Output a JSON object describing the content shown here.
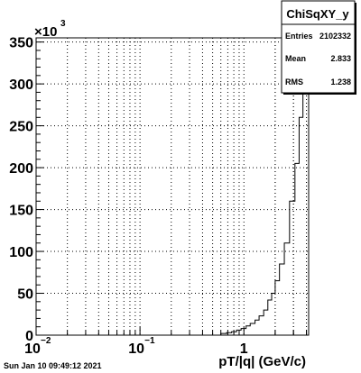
{
  "chart_data": {
    "type": "bar",
    "title": "",
    "xlabel": "pT/|q| (GeV/c)",
    "ylabel": "",
    "x_scale": "log",
    "xlim": [
      0.01,
      4.2
    ],
    "ylim": [
      0,
      355000
    ],
    "y_multiplier_label": "×10",
    "y_multiplier_exponent": "3",
    "x_ticks": [
      {
        "value": 0.01,
        "base": "10",
        "exp": "−2"
      },
      {
        "value": 0.1,
        "base": "10",
        "exp": "−1"
      },
      {
        "value": 1,
        "base": "1",
        "exp": ""
      }
    ],
    "y_ticks": [
      {
        "value": 0,
        "label": "0"
      },
      {
        "value": 50000,
        "label": "50"
      },
      {
        "value": 100000,
        "label": "100"
      },
      {
        "value": 150000,
        "label": "150"
      },
      {
        "value": 200000,
        "label": "200"
      },
      {
        "value": 250000,
        "label": "250"
      },
      {
        "value": 300000,
        "label": "300"
      },
      {
        "value": 350000,
        "label": "350"
      }
    ],
    "grid": true,
    "line_color": "#000000",
    "baseline_color": "#ff0000",
    "edges": [
      0.6,
      0.68,
      0.76,
      0.85,
      0.94,
      1.05,
      1.15,
      1.28,
      1.4,
      1.55,
      1.7,
      1.85,
      2.0,
      2.2,
      2.45,
      2.75,
      3.1,
      3.4,
      3.7,
      3.9,
      4.2
    ],
    "values": [
      2000,
      3000,
      4000,
      6000,
      8000,
      11000,
      14000,
      18000,
      23000,
      30000,
      42000,
      50000,
      65000,
      85000,
      110000,
      160000,
      205000,
      260000,
      300000,
      340000
    ]
  },
  "stats_box": {
    "title": "ChiSqXY_y",
    "entries_label": "Entries",
    "entries_value": "2102332",
    "mean_label": "Mean",
    "mean_value": "2.833",
    "rms_label": "RMS",
    "rms_value": "1.238"
  },
  "footer": {
    "date": "Sun Jan 10 09:49:12 2021"
  }
}
